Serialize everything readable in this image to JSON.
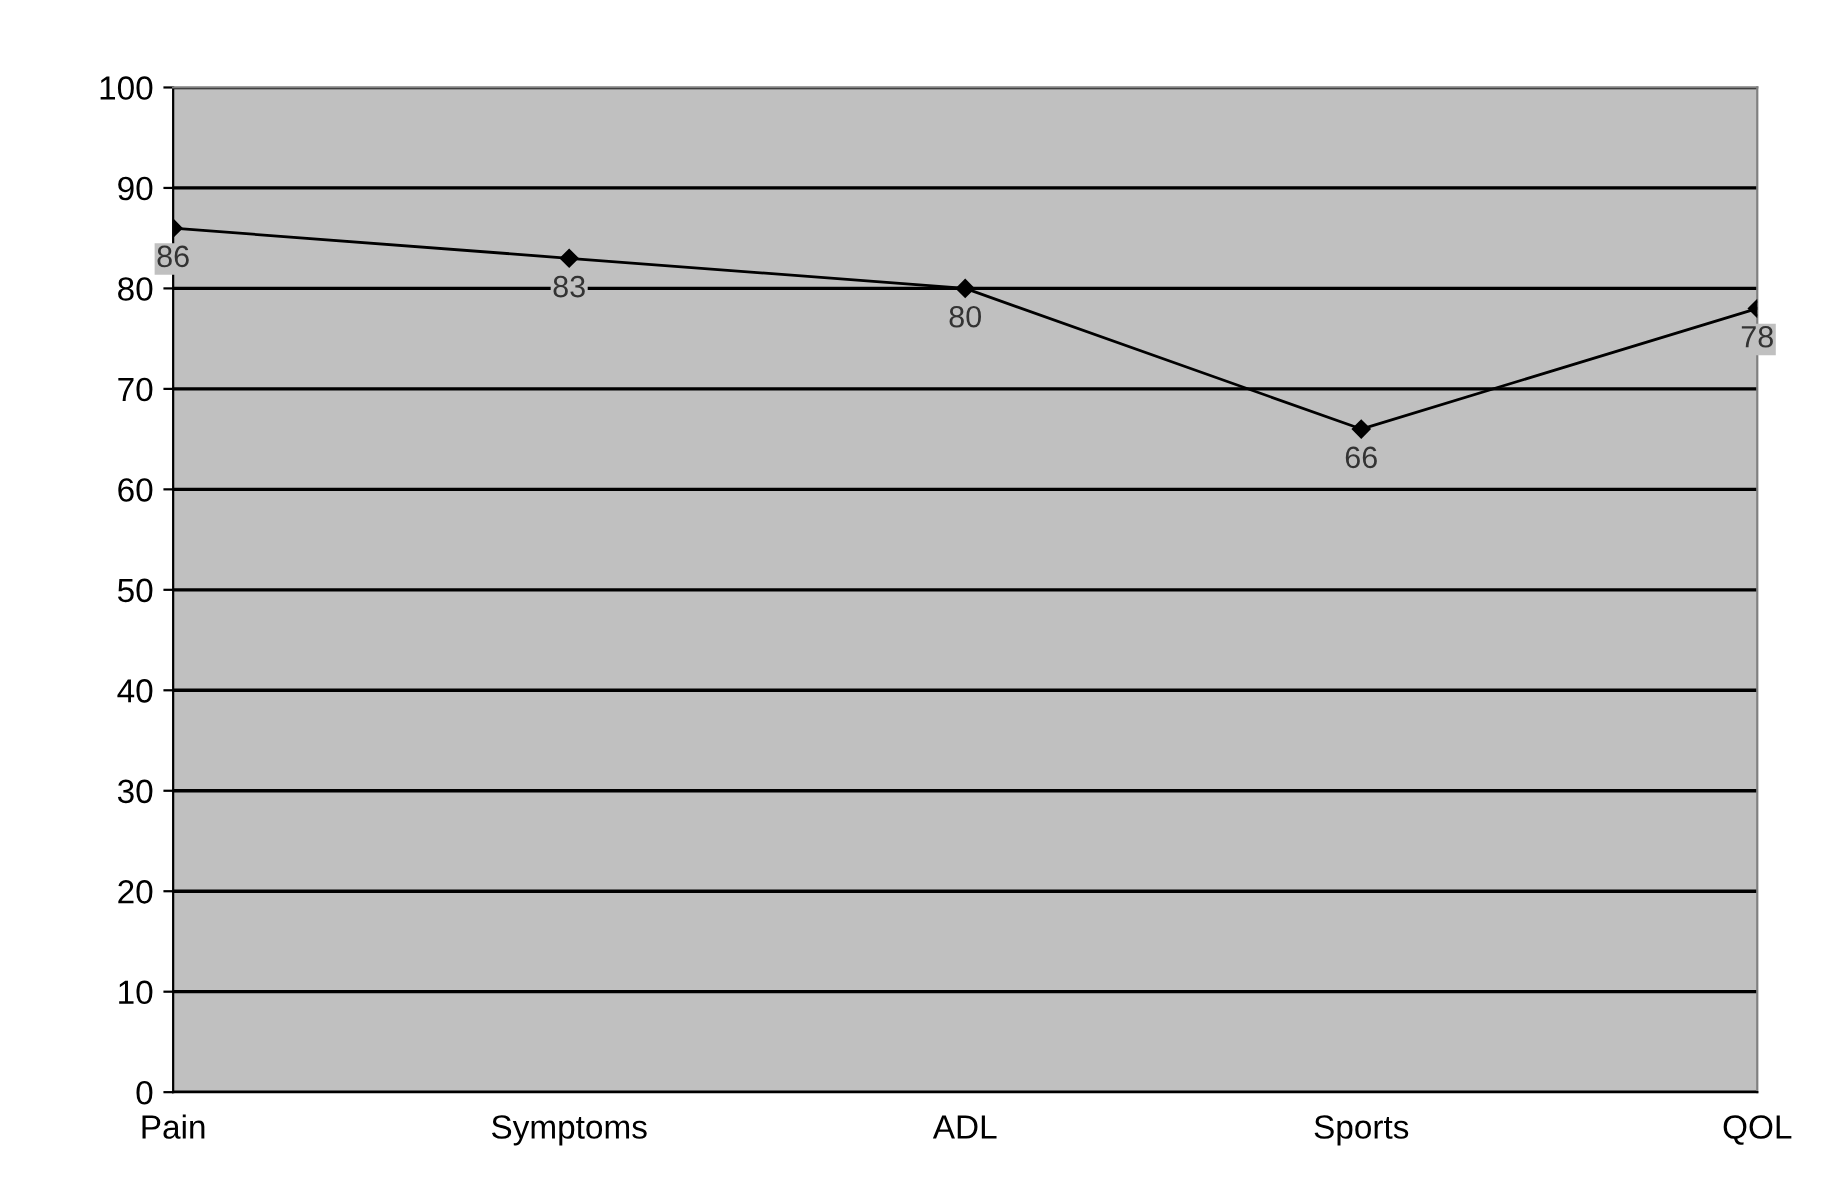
{
  "chart_data": {
    "type": "line",
    "categories": [
      "Pain",
      "Symptoms",
      "ADL",
      "Sports",
      "QOL"
    ],
    "series": [
      {
        "color": "#000000",
        "values": [
          86,
          83,
          80,
          66,
          78
        ]
      }
    ],
    "ylim": [
      0,
      100
    ],
    "yticks": [
      0,
      10,
      20,
      30,
      40,
      50,
      60,
      70,
      80,
      90,
      100
    ],
    "grid": "y",
    "marker": "diamond",
    "line_style": "solid",
    "data_labels": true
  }
}
